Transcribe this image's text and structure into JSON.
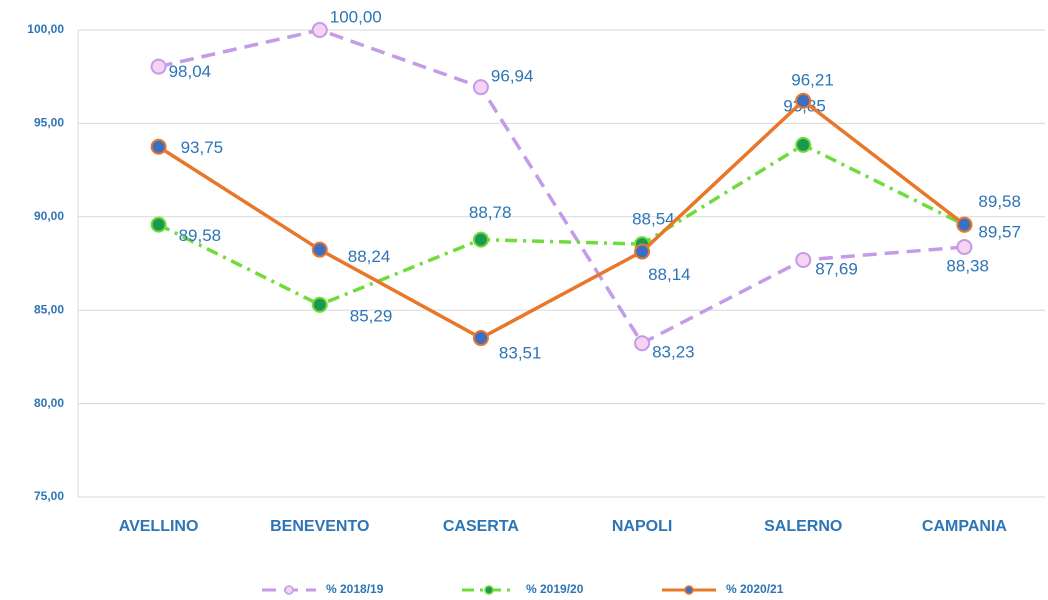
{
  "chart_data": {
    "type": "line",
    "categories": [
      "AVELLINO",
      "BENEVENTO",
      "CASERTA",
      "NAPOLI",
      "SALERNO",
      "CAMPANIA"
    ],
    "series": [
      {
        "name": "% 2018/19",
        "color": "#c39be8",
        "marker_color": "#f7d3f3",
        "line_style": "dashed",
        "values": [
          98.04,
          100.0,
          96.94,
          83.23,
          87.69,
          88.38
        ],
        "value_labels": [
          "98,04",
          "100,00",
          "96,94",
          "83,23",
          "87,69",
          "88,38"
        ]
      },
      {
        "name": "% 2019/20",
        "color": "#6fdc3a",
        "marker_color": "#1a9a50",
        "line_style": "dashdot",
        "values": [
          89.58,
          85.29,
          88.78,
          88.54,
          93.85,
          89.57
        ],
        "value_labels": [
          "89,58",
          "85,29",
          "88,78",
          "88,54",
          "93,85",
          "89,57"
        ]
      },
      {
        "name": "% 2020/21",
        "color": "#e8772a",
        "marker_color": "#3a6fc4",
        "line_style": "solid",
        "values": [
          93.75,
          88.24,
          83.51,
          88.14,
          96.21,
          89.58
        ],
        "value_labels": [
          "93,75",
          "88,24",
          "83,51",
          "88,14",
          "96,21",
          "89,58"
        ]
      }
    ],
    "ylim": [
      75,
      100
    ],
    "yticks": [
      {
        "value": 75,
        "label": "75,00"
      },
      {
        "value": 80,
        "label": "80,00"
      },
      {
        "value": 85,
        "label": "85,00"
      },
      {
        "value": 90,
        "label": "90,00"
      },
      {
        "value": 95,
        "label": "95,00"
      },
      {
        "value": 100,
        "label": "100,00"
      }
    ],
    "grid": true,
    "legend": "bottom"
  }
}
